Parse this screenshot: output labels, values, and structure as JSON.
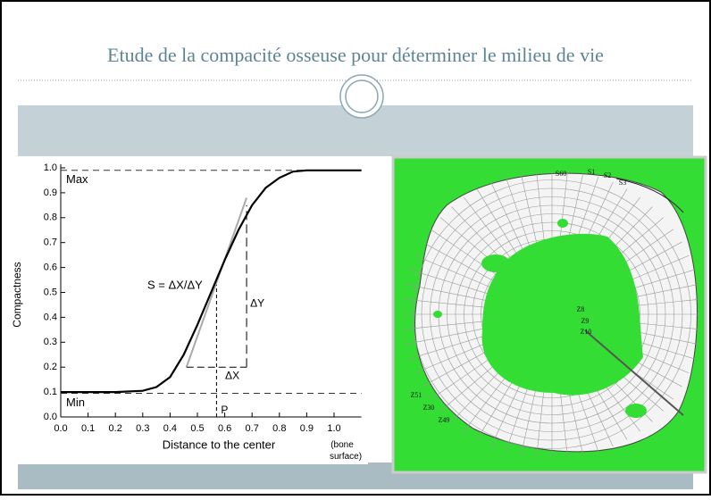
{
  "title": "Etude de la compacité osseuse pour déterminer le milieu de vie",
  "chart_data": {
    "type": "line",
    "x": [
      0,
      0.1,
      0.2,
      0.3,
      0.35,
      0.4,
      0.45,
      0.5,
      0.55,
      0.6,
      0.65,
      0.7,
      0.75,
      0.8,
      0.85,
      0.9,
      1.0,
      1.1
    ],
    "series": [
      {
        "name": "Compactness",
        "color": "#000000",
        "values": [
          0.1,
          0.1,
          0.1,
          0.105,
          0.12,
          0.16,
          0.25,
          0.37,
          0.5,
          0.63,
          0.75,
          0.85,
          0.92,
          0.96,
          0.985,
          0.99,
          0.99,
          0.99
        ]
      }
    ],
    "xlabel": "Distance to the center",
    "ylabel": "Compactness",
    "xnote": "(bone surface)",
    "xlim": [
      0,
      1.1
    ],
    "ylim": [
      0,
      1
    ],
    "xticks": [
      {
        "value": 0,
        "label": "0.0"
      },
      0.1,
      0.2,
      0.3,
      0.4,
      0.5,
      0.6,
      0.7,
      0.8,
      0.9,
      {
        "value": 1,
        "label": "1.0"
      }
    ],
    "yticks": [
      {
        "value": 0,
        "label": "0.0"
      },
      0.1,
      0.2,
      0.3,
      0.4,
      0.5,
      0.6,
      0.7,
      0.8,
      0.9,
      {
        "value": 1,
        "label": "1.0"
      }
    ],
    "reference_lines": [
      {
        "label": "Max",
        "value": 0.99
      },
      {
        "label": "Min",
        "value": 0.095
      }
    ],
    "tangent": {
      "label": "S = ΔX/ΔY",
      "x": [
        0.46,
        0.68
      ],
      "y": [
        0.2,
        0.88
      ]
    },
    "delta_x": {
      "label": "ΔX",
      "x": [
        0.46,
        0.68
      ],
      "y": 0.2
    },
    "delta_y": {
      "label": "ΔY",
      "x": 0.68,
      "y": [
        0.2,
        0.85
      ]
    },
    "point_p": {
      "label": "P",
      "x": 0.57,
      "y": 0.53
    }
  },
  "figure": {
    "labels": [
      "S60",
      "S1",
      "S2",
      "S3",
      "Z8",
      "Z9",
      "Z10",
      "Z51",
      "Z30",
      "Z49"
    ]
  }
}
